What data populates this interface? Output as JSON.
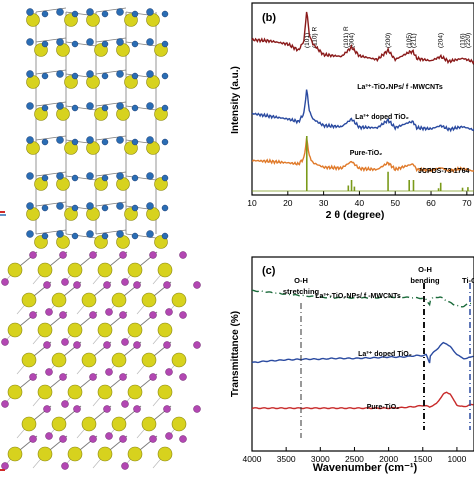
{
  "colors": {
    "ball_yellow": "#d7d21e",
    "ball_blue": "#2a6db4",
    "ball_magenta": "#b247b2",
    "bond": "#7a7a7a",
    "series_1": "#8a1a1a",
    "series_2": "#2a4aa0",
    "series_3": "#e07a2a",
    "series_4": "#2c8a3a",
    "reference": "#7a9a1a",
    "series_ftir_1": "#1a6a3a",
    "series_ftir_2": "#2a4aa0",
    "series_ftir_3": "#c82a2a",
    "red_mark": "#d02a2a"
  },
  "panels": {
    "b": {
      "label": "(b)",
      "ylabel": "Intensity (a.u.)",
      "xlabel": "2 θ (degree)",
      "xticks": [
        "10",
        "20",
        "30",
        "40",
        "50",
        "60",
        "70"
      ],
      "peak_labels": [
        "(101)",
        "(110) R",
        "(101) R",
        "(004)",
        "(200)",
        "(105)",
        "(211)",
        "(204)",
        "(116)",
        "(220)"
      ],
      "series_labels": [
        "La³⁺-TiO₂NPs/ f -MWCNTs",
        "La³⁺ doped TiO₂",
        "Pure-TiO₂",
        "JCPDS-73-1764"
      ]
    },
    "c": {
      "label": "(c)",
      "ylabel": "Transmittance (%)",
      "xlabel": "Wavenumber (cm⁻¹)",
      "xticks": [
        "4000",
        "3500",
        "3000",
        "2500",
        "2000",
        "1500",
        "1000"
      ],
      "annotations": [
        "O-H",
        "stretching",
        "O-H",
        "bending",
        "Ti-O"
      ],
      "series_labels": [
        "La³⁺-TiO₂NPs/ f -MWCNTs",
        "La³⁺ doped TiO₂",
        "Pure-TiO₂"
      ]
    }
  },
  "chart_data": [
    {
      "type": "line",
      "title": "(b)",
      "xlabel": "2 θ (degree)",
      "ylabel": "Intensity (a.u.)",
      "xlim": [
        10,
        72
      ],
      "grid": false,
      "series": [
        {
          "name": "La³⁺-TiO₂NPs/ f -MWCNTs",
          "x": [
            10,
            15,
            20,
            23,
            24.5,
            25.3,
            26,
            27,
            30,
            35,
            37.8,
            40,
            45,
            48,
            50,
            53.9,
            55,
            56,
            60,
            62.7,
            65,
            68.8,
            70,
            72
          ],
          "y": [
            0.52,
            0.5,
            0.45,
            0.35,
            0.5,
            1.0,
            0.6,
            0.45,
            0.28,
            0.25,
            0.4,
            0.26,
            0.2,
            0.35,
            0.2,
            0.32,
            0.33,
            0.22,
            0.18,
            0.25,
            0.17,
            0.22,
            0.2,
            0.16
          ]
        },
        {
          "name": "La³⁺ doped TiO₂",
          "x": [
            10,
            15,
            20,
            23,
            24.5,
            25.3,
            26,
            27,
            30,
            35,
            37.8,
            40,
            45,
            48,
            50,
            53.9,
            55,
            56,
            60,
            62.7,
            65,
            68.8,
            70,
            72
          ],
          "y": [
            0.3,
            0.25,
            0.2,
            0.15,
            0.3,
            0.75,
            0.35,
            0.2,
            0.08,
            0.06,
            0.2,
            0.05,
            0.04,
            0.18,
            0.04,
            0.14,
            0.15,
            0.04,
            0.02,
            0.08,
            0.01,
            0.06,
            0.04,
            0.0
          ]
        },
        {
          "name": "Pure-TiO₂",
          "x": [
            10,
            15,
            20,
            23,
            24.5,
            25.3,
            26,
            27,
            30,
            35,
            37.8,
            40,
            45,
            48,
            50,
            53.9,
            55,
            56,
            60,
            62.7,
            65,
            68.8,
            70,
            72
          ],
          "y": [
            0.1,
            0.08,
            0.05,
            0.02,
            0.15,
            0.6,
            0.2,
            0.05,
            -0.05,
            -0.07,
            0.08,
            -0.08,
            -0.1,
            0.05,
            -0.1,
            0.0,
            0.02,
            -0.1,
            -0.12,
            -0.06,
            -0.13,
            -0.08,
            -0.1,
            -0.14
          ]
        }
      ],
      "reference": {
        "name": "JCPDS-73-1764",
        "x": [
          25.3,
          36.9,
          37.8,
          38.6,
          48.0,
          53.9,
          55.1,
          62.1,
          62.7,
          68.8,
          70.3
        ],
        "y": [
          1.0,
          0.1,
          0.2,
          0.08,
          0.35,
          0.2,
          0.2,
          0.05,
          0.15,
          0.06,
          0.07
        ]
      }
    },
    {
      "type": "line",
      "title": "(c)",
      "xlabel": "Wavenumber (cm⁻¹)",
      "ylabel": "Transmittance (%)",
      "xlim": [
        4000,
        750
      ],
      "grid": false,
      "series": [
        {
          "name": "La³⁺-TiO₂NPs/ f -MWCNTs",
          "x": [
            4000,
            3800,
            3500,
            3200,
            3000,
            2800,
            2500,
            2200,
            2000,
            1800,
            1600,
            1500,
            1450,
            1400,
            1390,
            1350,
            1300,
            1250,
            1200,
            1150,
            1100,
            1050,
            1000,
            950,
            900,
            850,
            800,
            750
          ],
          "y": [
            0.99,
            0.97,
            0.93,
            0.9,
            0.88,
            0.87,
            0.87,
            0.87,
            0.88,
            0.88,
            0.87,
            0.86,
            0.84,
            0.76,
            0.82,
            0.87,
            0.88,
            0.88,
            0.86,
            0.82,
            0.79,
            0.76,
            0.74,
            0.72,
            0.73,
            0.76,
            0.78,
            0.8
          ]
        },
        {
          "name": "La³⁺ doped TiO₂",
          "x": [
            4000,
            3800,
            3500,
            3200,
            3000,
            2800,
            2500,
            2200,
            2000,
            1800,
            1600,
            1500,
            1450,
            1400,
            1390,
            1350,
            1300,
            1250,
            1200,
            1150,
            1100,
            1050,
            1000,
            950,
            900,
            850,
            800,
            750
          ],
          "y": [
            0.42,
            0.44,
            0.46,
            0.47,
            0.47,
            0.48,
            0.48,
            0.49,
            0.5,
            0.5,
            0.52,
            0.52,
            0.53,
            0.42,
            0.52,
            0.56,
            0.6,
            0.66,
            0.7,
            0.69,
            0.65,
            0.59,
            0.54,
            0.5,
            0.48,
            0.48,
            0.5,
            0.52
          ]
        },
        {
          "name": "Pure-TiO₂",
          "x": [
            4000,
            3800,
            3500,
            3200,
            3000,
            2800,
            2500,
            2200,
            2000,
            1800,
            1600,
            1500,
            1450,
            1400,
            1390,
            1350,
            1300,
            1250,
            1200,
            1150,
            1100,
            1050,
            1000,
            950,
            900,
            850,
            800,
            750
          ],
          "y": [
            0.07,
            0.07,
            0.07,
            0.07,
            0.07,
            0.07,
            0.07,
            0.07,
            0.07,
            0.08,
            0.1,
            0.12,
            0.11,
            0.09,
            0.1,
            0.12,
            0.15,
            0.24,
            0.32,
            0.36,
            0.33,
            0.22,
            0.13,
            0.1,
            0.1,
            0.11,
            0.13,
            0.14
          ]
        }
      ]
    }
  ]
}
